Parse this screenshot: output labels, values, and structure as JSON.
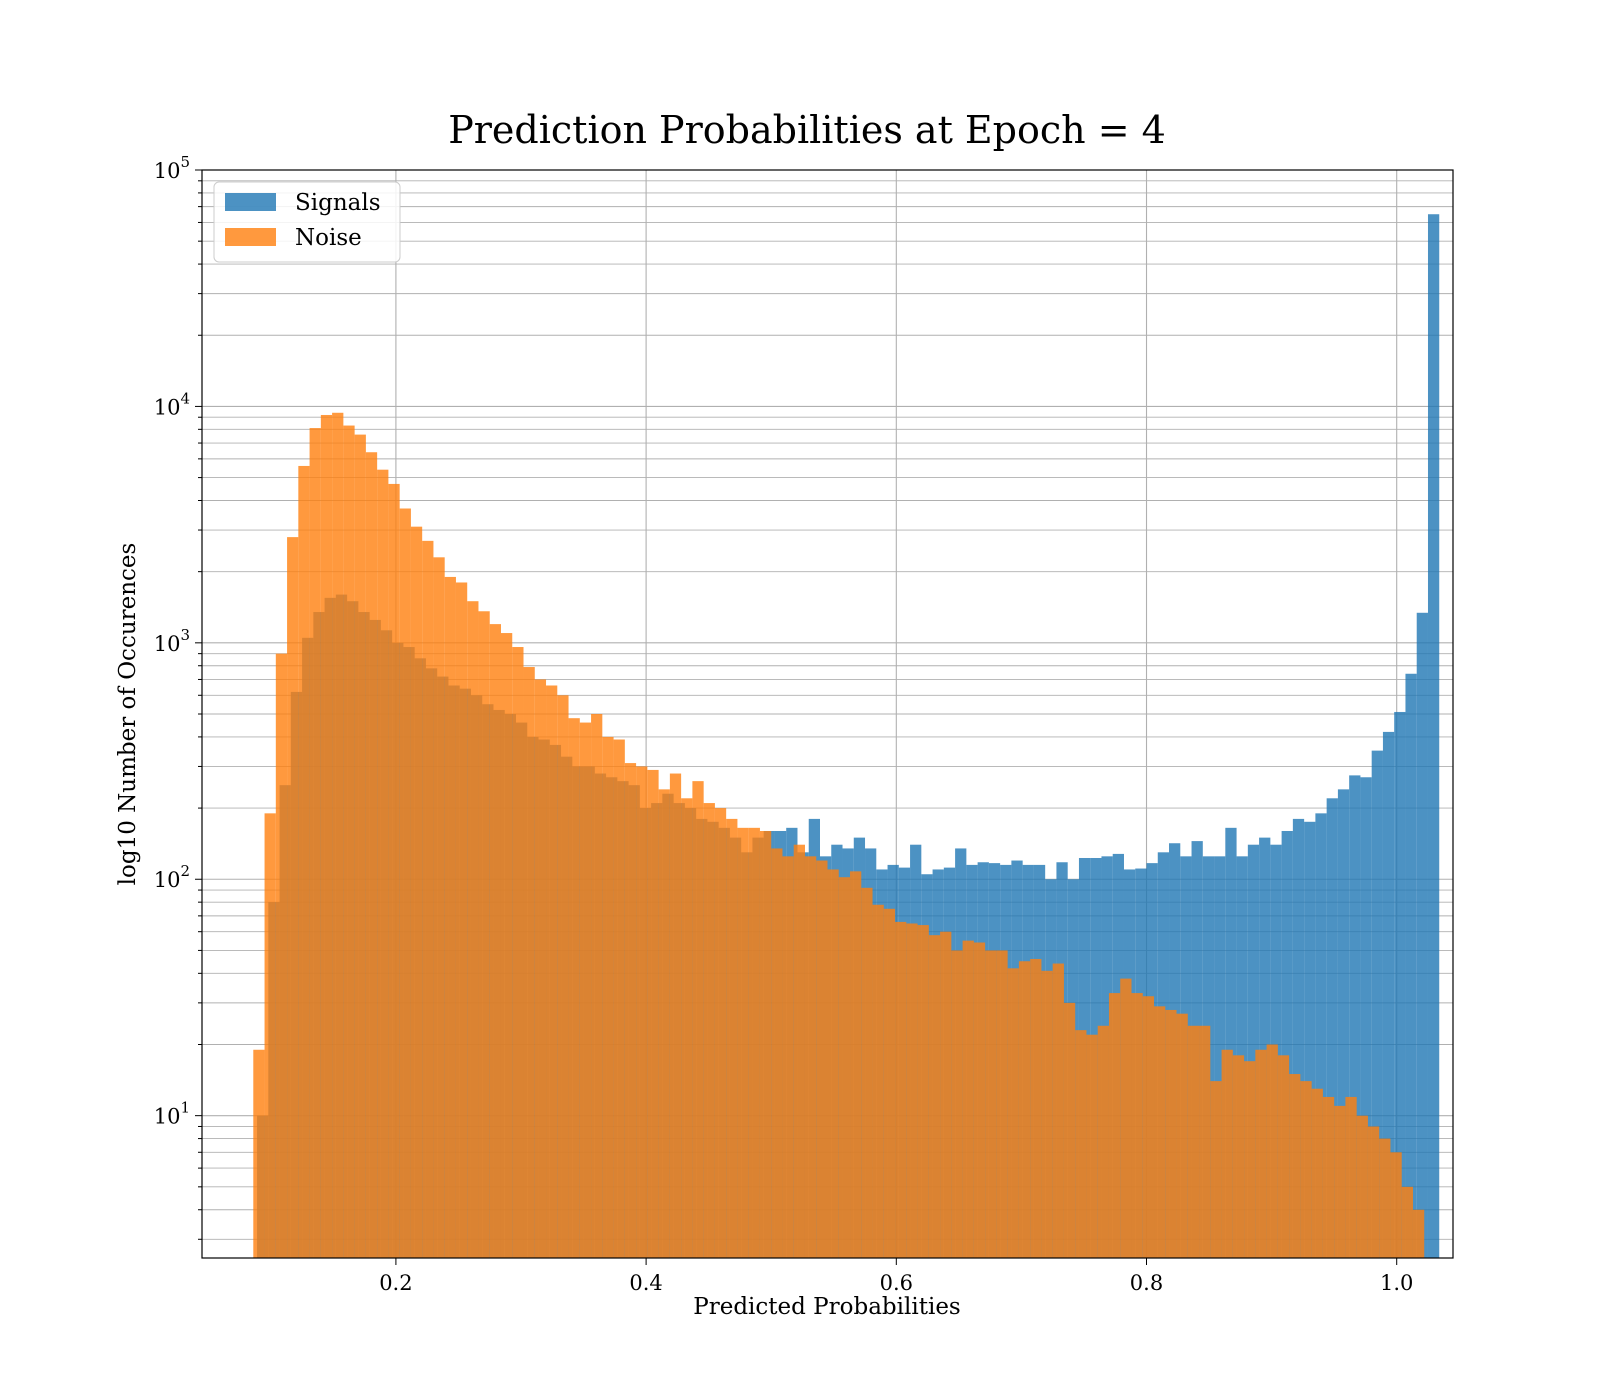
{
  "chart_data": {
    "type": "histogram",
    "title": "Prediction Probabilities at Epoch = 4",
    "xlabel": "Predicted Probabilities",
    "ylabel": "log10 Number of Occurences",
    "xlim": [
      0.045,
      1.045
    ],
    "ylim": [
      2.5,
      100000
    ],
    "yscale": "log",
    "grid": true,
    "legend_position": "top-left",
    "x_ticks": [
      "0.2",
      "0.4",
      "0.6",
      "0.8",
      "1.0"
    ],
    "y_ticks": [
      {
        "base": "10",
        "exp": "1"
      },
      {
        "base": "10",
        "exp": "2"
      },
      {
        "base": "10",
        "exp": "3"
      },
      {
        "base": "10",
        "exp": "4"
      },
      {
        "base": "10",
        "exp": "5"
      }
    ],
    "series": [
      {
        "name": "Signals",
        "color": "#1f77b4",
        "bins": [
          [
            0.089,
            0.098,
            10
          ],
          [
            0.098,
            0.107,
            80
          ],
          [
            0.107,
            0.116,
            250
          ],
          [
            0.116,
            0.125,
            620
          ],
          [
            0.125,
            0.134,
            1050
          ],
          [
            0.134,
            0.143,
            1350
          ],
          [
            0.143,
            0.152,
            1550
          ],
          [
            0.152,
            0.161,
            1600
          ],
          [
            0.161,
            0.17,
            1500
          ],
          [
            0.17,
            0.179,
            1350
          ],
          [
            0.179,
            0.188,
            1250
          ],
          [
            0.188,
            0.197,
            1130
          ],
          [
            0.197,
            0.206,
            1000
          ],
          [
            0.206,
            0.215,
            960
          ],
          [
            0.215,
            0.224,
            860
          ],
          [
            0.224,
            0.233,
            780
          ],
          [
            0.233,
            0.242,
            720
          ],
          [
            0.242,
            0.251,
            660
          ],
          [
            0.251,
            0.26,
            640
          ],
          [
            0.26,
            0.269,
            600
          ],
          [
            0.269,
            0.278,
            550
          ],
          [
            0.278,
            0.287,
            520
          ],
          [
            0.287,
            0.296,
            500
          ],
          [
            0.296,
            0.305,
            460
          ],
          [
            0.305,
            0.314,
            400
          ],
          [
            0.314,
            0.323,
            390
          ],
          [
            0.323,
            0.332,
            370
          ],
          [
            0.332,
            0.341,
            330
          ],
          [
            0.341,
            0.35,
            300
          ],
          [
            0.35,
            0.359,
            300
          ],
          [
            0.359,
            0.368,
            280
          ],
          [
            0.368,
            0.377,
            270
          ],
          [
            0.377,
            0.386,
            260
          ],
          [
            0.386,
            0.395,
            250
          ],
          [
            0.395,
            0.404,
            200
          ],
          [
            0.404,
            0.413,
            210
          ],
          [
            0.413,
            0.422,
            230
          ],
          [
            0.422,
            0.431,
            210
          ],
          [
            0.431,
            0.44,
            200
          ],
          [
            0.44,
            0.449,
            180
          ],
          [
            0.449,
            0.458,
            175
          ],
          [
            0.458,
            0.467,
            165
          ],
          [
            0.467,
            0.476,
            150
          ],
          [
            0.476,
            0.485,
            130
          ],
          [
            0.485,
            0.494,
            150
          ],
          [
            0.494,
            0.503,
            160
          ],
          [
            0.503,
            0.512,
            160
          ],
          [
            0.512,
            0.521,
            165
          ],
          [
            0.521,
            0.53,
            130
          ],
          [
            0.53,
            0.539,
            180
          ],
          [
            0.539,
            0.548,
            125
          ],
          [
            0.548,
            0.557,
            140
          ],
          [
            0.557,
            0.566,
            135
          ],
          [
            0.566,
            0.575,
            150
          ],
          [
            0.575,
            0.584,
            135
          ],
          [
            0.584,
            0.593,
            110
          ],
          [
            0.593,
            0.602,
            115
          ],
          [
            0.602,
            0.611,
            112
          ],
          [
            0.611,
            0.62,
            140
          ],
          [
            0.62,
            0.629,
            105
          ],
          [
            0.629,
            0.638,
            110
          ],
          [
            0.638,
            0.647,
            112
          ],
          [
            0.647,
            0.656,
            135
          ],
          [
            0.656,
            0.665,
            115
          ],
          [
            0.665,
            0.674,
            118
          ],
          [
            0.674,
            0.683,
            117
          ],
          [
            0.683,
            0.692,
            115
          ],
          [
            0.692,
            0.701,
            120
          ],
          [
            0.701,
            0.71,
            115
          ],
          [
            0.71,
            0.719,
            115
          ],
          [
            0.719,
            0.728,
            100
          ],
          [
            0.728,
            0.737,
            118
          ],
          [
            0.737,
            0.746,
            100
          ],
          [
            0.746,
            0.755,
            123
          ],
          [
            0.755,
            0.764,
            123
          ],
          [
            0.764,
            0.773,
            125
          ],
          [
            0.773,
            0.782,
            128
          ],
          [
            0.782,
            0.791,
            110
          ],
          [
            0.791,
            0.8,
            111
          ],
          [
            0.8,
            0.809,
            117
          ],
          [
            0.809,
            0.818,
            130
          ],
          [
            0.818,
            0.827,
            142
          ],
          [
            0.827,
            0.836,
            125
          ],
          [
            0.836,
            0.845,
            145
          ],
          [
            0.845,
            0.854,
            125
          ],
          [
            0.854,
            0.863,
            125
          ],
          [
            0.863,
            0.872,
            165
          ],
          [
            0.872,
            0.881,
            125
          ],
          [
            0.881,
            0.89,
            140
          ],
          [
            0.89,
            0.899,
            150
          ],
          [
            0.899,
            0.908,
            140
          ],
          [
            0.908,
            0.917,
            160
          ],
          [
            0.917,
            0.926,
            180
          ],
          [
            0.926,
            0.935,
            175
          ],
          [
            0.935,
            0.944,
            190
          ],
          [
            0.944,
            0.953,
            220
          ],
          [
            0.953,
            0.962,
            240
          ],
          [
            0.962,
            0.971,
            275
          ],
          [
            0.971,
            0.98,
            270
          ],
          [
            0.98,
            0.989,
            350
          ],
          [
            0.989,
            0.998,
            420
          ],
          [
            0.998,
            1.007,
            510
          ],
          [
            1.007,
            1.016,
            740
          ],
          [
            1.016,
            1.025,
            1340
          ],
          [
            1.025,
            1.034,
            65000
          ]
        ]
      },
      {
        "name": "Noise",
        "color": "#ff7f0e",
        "bins": [
          [
            0.086,
            0.095,
            19
          ],
          [
            0.095,
            0.104,
            190
          ],
          [
            0.104,
            0.113,
            900
          ],
          [
            0.113,
            0.122,
            2800
          ],
          [
            0.122,
            0.131,
            5600
          ],
          [
            0.131,
            0.14,
            8100
          ],
          [
            0.14,
            0.149,
            9200
          ],
          [
            0.149,
            0.158,
            9400
          ],
          [
            0.158,
            0.167,
            8300
          ],
          [
            0.167,
            0.176,
            7600
          ],
          [
            0.176,
            0.185,
            6400
          ],
          [
            0.185,
            0.194,
            5400
          ],
          [
            0.194,
            0.203,
            4700
          ],
          [
            0.203,
            0.212,
            3700
          ],
          [
            0.212,
            0.221,
            3100
          ],
          [
            0.221,
            0.23,
            2700
          ],
          [
            0.23,
            0.239,
            2300
          ],
          [
            0.239,
            0.248,
            1900
          ],
          [
            0.248,
            0.257,
            1800
          ],
          [
            0.257,
            0.266,
            1500
          ],
          [
            0.266,
            0.275,
            1360
          ],
          [
            0.275,
            0.284,
            1200
          ],
          [
            0.284,
            0.293,
            1100
          ],
          [
            0.293,
            0.302,
            960
          ],
          [
            0.302,
            0.311,
            790
          ],
          [
            0.311,
            0.32,
            700
          ],
          [
            0.32,
            0.329,
            660
          ],
          [
            0.329,
            0.338,
            600
          ],
          [
            0.338,
            0.347,
            480
          ],
          [
            0.347,
            0.356,
            460
          ],
          [
            0.356,
            0.365,
            500
          ],
          [
            0.365,
            0.374,
            400
          ],
          [
            0.374,
            0.383,
            390
          ],
          [
            0.383,
            0.392,
            310
          ],
          [
            0.392,
            0.401,
            300
          ],
          [
            0.401,
            0.41,
            290
          ],
          [
            0.41,
            0.419,
            240
          ],
          [
            0.419,
            0.428,
            280
          ],
          [
            0.428,
            0.437,
            220
          ],
          [
            0.437,
            0.446,
            260
          ],
          [
            0.446,
            0.455,
            210
          ],
          [
            0.455,
            0.464,
            200
          ],
          [
            0.464,
            0.473,
            180
          ],
          [
            0.473,
            0.482,
            165
          ],
          [
            0.482,
            0.491,
            165
          ],
          [
            0.491,
            0.5,
            160
          ],
          [
            0.5,
            0.509,
            135
          ],
          [
            0.509,
            0.518,
            125
          ],
          [
            0.518,
            0.527,
            140
          ],
          [
            0.527,
            0.536,
            125
          ],
          [
            0.536,
            0.545,
            120
          ],
          [
            0.545,
            0.554,
            110
          ],
          [
            0.554,
            0.563,
            102
          ],
          [
            0.563,
            0.572,
            108
          ],
          [
            0.572,
            0.581,
            92
          ],
          [
            0.581,
            0.59,
            78
          ],
          [
            0.59,
            0.599,
            75
          ],
          [
            0.599,
            0.608,
            66
          ],
          [
            0.608,
            0.617,
            65
          ],
          [
            0.617,
            0.626,
            64
          ],
          [
            0.626,
            0.635,
            58
          ],
          [
            0.635,
            0.644,
            60
          ],
          [
            0.644,
            0.653,
            50
          ],
          [
            0.653,
            0.662,
            55
          ],
          [
            0.662,
            0.671,
            54
          ],
          [
            0.671,
            0.68,
            50
          ],
          [
            0.68,
            0.689,
            50
          ],
          [
            0.689,
            0.698,
            42
          ],
          [
            0.698,
            0.707,
            45
          ],
          [
            0.707,
            0.716,
            46
          ],
          [
            0.716,
            0.725,
            41
          ],
          [
            0.725,
            0.734,
            44
          ],
          [
            0.734,
            0.743,
            30
          ],
          [
            0.743,
            0.752,
            23
          ],
          [
            0.752,
            0.761,
            22
          ],
          [
            0.761,
            0.77,
            24
          ],
          [
            0.77,
            0.779,
            33
          ],
          [
            0.779,
            0.788,
            38
          ],
          [
            0.788,
            0.797,
            33
          ],
          [
            0.797,
            0.806,
            32
          ],
          [
            0.806,
            0.815,
            29
          ],
          [
            0.815,
            0.824,
            28
          ],
          [
            0.824,
            0.833,
            27
          ],
          [
            0.833,
            0.842,
            24
          ],
          [
            0.842,
            0.851,
            24
          ],
          [
            0.851,
            0.86,
            14
          ],
          [
            0.86,
            0.869,
            19
          ],
          [
            0.869,
            0.878,
            18
          ],
          [
            0.878,
            0.887,
            17
          ],
          [
            0.887,
            0.896,
            19
          ],
          [
            0.896,
            0.905,
            20
          ],
          [
            0.905,
            0.914,
            18
          ],
          [
            0.914,
            0.923,
            15
          ],
          [
            0.923,
            0.932,
            14
          ],
          [
            0.932,
            0.941,
            13
          ],
          [
            0.941,
            0.95,
            12
          ],
          [
            0.95,
            0.959,
            11
          ],
          [
            0.959,
            0.968,
            12
          ],
          [
            0.968,
            0.977,
            10
          ],
          [
            0.977,
            0.986,
            9
          ],
          [
            0.986,
            0.995,
            8
          ],
          [
            0.995,
            1.004,
            7
          ],
          [
            1.004,
            1.013,
            5
          ],
          [
            1.013,
            1.022,
            4
          ]
        ]
      }
    ]
  }
}
